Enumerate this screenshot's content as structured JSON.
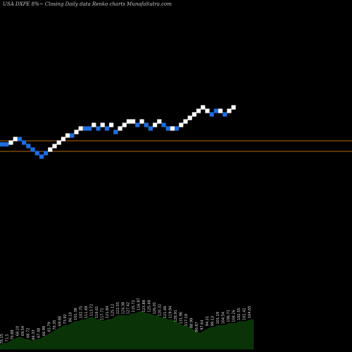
{
  "title": "USA DXPE 8%~  Closing Daily data  Renko  charts MunafaSutra.com",
  "colors": {
    "background": "#000000",
    "up_brick": "#ffffff",
    "down_brick": "#1e6fe0",
    "reference_line": "#b8680a",
    "volume_fill": "#0a3308",
    "volume_outline": "#0d4a0a"
  },
  "chart_data": {
    "type": "renko",
    "title": "USA DXPE 8%~  Closing Daily data  Renko  charts MunafaSutra.com",
    "grid": false,
    "reference_lines": [
      57.2,
      56.0
    ],
    "price_ylim": [
      40,
      72
    ],
    "bricks": [
      {
        "dir": "down",
        "level": 56.8
      },
      {
        "dir": "down",
        "level": 56.8
      },
      {
        "dir": "up",
        "level": 57.0
      },
      {
        "dir": "up",
        "level": 57.4
      },
      {
        "dir": "down",
        "level": 57.4
      },
      {
        "dir": "down",
        "level": 57.0
      },
      {
        "dir": "down",
        "level": 56.6
      },
      {
        "dir": "down",
        "level": 56.2
      },
      {
        "dir": "down",
        "level": 55.8
      },
      {
        "dir": "down",
        "level": 55.4
      },
      {
        "dir": "down",
        "level": 55.8
      },
      {
        "dir": "up",
        "level": 56.2
      },
      {
        "dir": "up",
        "level": 56.6
      },
      {
        "dir": "up",
        "level": 57.0
      },
      {
        "dir": "up",
        "level": 57.4
      },
      {
        "dir": "up",
        "level": 57.8
      },
      {
        "dir": "down",
        "level": 57.8
      },
      {
        "dir": "up",
        "level": 58.2
      },
      {
        "dir": "up",
        "level": 58.6
      },
      {
        "dir": "down",
        "level": 58.6
      },
      {
        "dir": "down",
        "level": 58.6
      },
      {
        "dir": "up",
        "level": 59.0
      },
      {
        "dir": "down",
        "level": 58.6
      },
      {
        "dir": "up",
        "level": 59.0
      },
      {
        "dir": "down",
        "level": 58.6
      },
      {
        "dir": "up",
        "level": 59.0
      },
      {
        "dir": "down",
        "level": 58.2
      },
      {
        "dir": "up",
        "level": 58.6
      },
      {
        "dir": "up",
        "level": 59.0
      },
      {
        "dir": "up",
        "level": 59.4
      },
      {
        "dir": "up",
        "level": 59.4
      },
      {
        "dir": "down",
        "level": 59.0
      },
      {
        "dir": "up",
        "level": 59.4
      },
      {
        "dir": "down",
        "level": 59.0
      },
      {
        "dir": "down",
        "level": 58.6
      },
      {
        "dir": "up",
        "level": 59.0
      },
      {
        "dir": "up",
        "level": 59.4
      },
      {
        "dir": "down",
        "level": 59.0
      },
      {
        "dir": "down",
        "level": 58.6
      },
      {
        "dir": "up",
        "level": 58.6
      },
      {
        "dir": "down",
        "level": 58.6
      },
      {
        "dir": "up",
        "level": 59.0
      },
      {
        "dir": "up",
        "level": 59.4
      },
      {
        "dir": "up",
        "level": 59.8
      },
      {
        "dir": "up",
        "level": 60.2
      },
      {
        "dir": "up",
        "level": 60.6
      },
      {
        "dir": "up",
        "level": 61.0
      },
      {
        "dir": "up",
        "level": 60.6
      },
      {
        "dir": "down",
        "level": 60.2
      },
      {
        "dir": "down",
        "level": 60.6
      },
      {
        "dir": "up",
        "level": 60.6
      },
      {
        "dir": "down",
        "level": 60.2
      },
      {
        "dir": "up",
        "level": 60.6
      },
      {
        "dir": "up",
        "level": 61.0
      }
    ],
    "volume": [
      2,
      3,
      3,
      4,
      5,
      6,
      6,
      5,
      5,
      4,
      5,
      5,
      6,
      7,
      8,
      9,
      10,
      11,
      12,
      12,
      13,
      14,
      14,
      15,
      15,
      16,
      16,
      15,
      15,
      14,
      15,
      15,
      16,
      17,
      17,
      17,
      17,
      18,
      18,
      19,
      19,
      18,
      18,
      17,
      17,
      16,
      16,
      15,
      15,
      14,
      13,
      12,
      12,
      11,
      10,
      9,
      8,
      9,
      10,
      11,
      11,
      12,
      12,
      12,
      13,
      13,
      13,
      14,
      14,
      14,
      15,
      15
    ],
    "volume_labels": [
      "76.15",
      "71.5",
      "70.88",
      "68.10",
      "69.54",
      "68.72",
      "66.33",
      "67.48",
      "66.99",
      "65.79",
      "70.35",
      "69.88",
      "73.92",
      "86.10",
      "101.38",
      "102.75",
      "111.69",
      "113.72",
      "116.61",
      "117.71",
      "121.84",
      "125.12",
      "122.55",
      "124.38",
      "127.42",
      "115.72",
      "116.97",
      "123.88",
      "125.48",
      "126.01",
      "120.32",
      "121.66",
      "119.94",
      "128.91",
      "131.96",
      "117.18",
      "88.99",
      "90.87",
      "97.64",
      "94.21",
      "99.13",
      "101.19",
      "104.54",
      "106.71",
      "104.26",
      "102.55",
      "101.42",
      "104.65"
    ]
  }
}
